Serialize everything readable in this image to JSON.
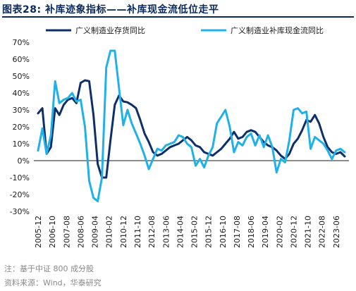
{
  "header": {
    "figure_label": "图表28:",
    "figure_title": "补库迹象指标——补库现金流低位走平"
  },
  "footer": {
    "note": "注：基于中证 800 成分股",
    "source": "资料来源：Wind，华泰研究"
  },
  "chart_data": {
    "type": "line",
    "title": "补库迹象指标——补库现金流低位走平",
    "xlabel": "",
    "ylabel": "",
    "ylim": [
      -30,
      70
    ],
    "y_ticks": [
      "70%",
      "60%",
      "50%",
      "40%",
      "30%",
      "20%",
      "10%",
      "0%",
      "-10%",
      "-20%",
      "-30%"
    ],
    "x_tick_labels": [
      "2005-12",
      "2006-10",
      "2007-08",
      "2008-06",
      "2009-04",
      "2010-02",
      "2010-12",
      "2011-10",
      "2012-08",
      "2013-06",
      "2014-04",
      "2015-02",
      "2015-12",
      "2016-10",
      "2017-08",
      "2018-06",
      "2019-04",
      "2020-02",
      "2020-12",
      "2021-10",
      "2022-08",
      "2023-06"
    ],
    "grid": false,
    "legend_position": "top",
    "series": [
      {
        "name": "广义制造业存货同比",
        "color": "#0f2f6b",
        "points": [
          [
            "2005-12",
            28
          ],
          [
            "2006-03",
            31
          ],
          [
            "2006-06",
            4
          ],
          [
            "2006-09",
            8
          ],
          [
            "2006-12",
            31
          ],
          [
            "2007-03",
            27
          ],
          [
            "2007-06",
            33
          ],
          [
            "2007-09",
            36
          ],
          [
            "2007-12",
            37
          ],
          [
            "2008-03",
            34
          ],
          [
            "2008-06",
            46
          ],
          [
            "2008-09",
            47.5
          ],
          [
            "2008-12",
            47
          ],
          [
            "2009-03",
            27
          ],
          [
            "2009-06",
            -2
          ],
          [
            "2009-09",
            -10
          ],
          [
            "2009-12",
            -10
          ],
          [
            "2010-03",
            12
          ],
          [
            "2010-06",
            33
          ],
          [
            "2010-09",
            38.5
          ],
          [
            "2010-12",
            35
          ],
          [
            "2011-03",
            34.5
          ],
          [
            "2011-06",
            33
          ],
          [
            "2011-09",
            31
          ],
          [
            "2011-12",
            24
          ],
          [
            "2012-03",
            16
          ],
          [
            "2012-06",
            11
          ],
          [
            "2012-09",
            5
          ],
          [
            "2012-12",
            3
          ],
          [
            "2013-03",
            4
          ],
          [
            "2013-06",
            6
          ],
          [
            "2013-09",
            8
          ],
          [
            "2013-12",
            9
          ],
          [
            "2014-03",
            10
          ],
          [
            "2014-06",
            12
          ],
          [
            "2014-09",
            14
          ],
          [
            "2014-12",
            12
          ],
          [
            "2015-03",
            9
          ],
          [
            "2015-06",
            8
          ],
          [
            "2015-09",
            5
          ],
          [
            "2015-12",
            4
          ],
          [
            "2016-03",
            3
          ],
          [
            "2016-06",
            5
          ],
          [
            "2016-09",
            7
          ],
          [
            "2016-12",
            10
          ],
          [
            "2017-03",
            13
          ],
          [
            "2017-06",
            17
          ],
          [
            "2017-09",
            13
          ],
          [
            "2017-12",
            14
          ],
          [
            "2018-03",
            17
          ],
          [
            "2018-06",
            18
          ],
          [
            "2018-09",
            17
          ],
          [
            "2018-12",
            14
          ],
          [
            "2019-03",
            11
          ],
          [
            "2019-06",
            9
          ],
          [
            "2019-09",
            8
          ],
          [
            "2019-12",
            6
          ],
          [
            "2020-03",
            3
          ],
          [
            "2020-06",
            1
          ],
          [
            "2020-09",
            4
          ],
          [
            "2020-12",
            10
          ],
          [
            "2021-03",
            13
          ],
          [
            "2021-06",
            18
          ],
          [
            "2021-09",
            24
          ],
          [
            "2021-12",
            23
          ],
          [
            "2022-03",
            27
          ],
          [
            "2022-06",
            22
          ],
          [
            "2022-09",
            14
          ],
          [
            "2022-12",
            8
          ],
          [
            "2023-03",
            5
          ],
          [
            "2023-06",
            4
          ],
          [
            "2023-09",
            5
          ],
          [
            "2023-12",
            2.5
          ]
        ]
      },
      {
        "name": "广义制造业补库现金流同比",
        "color": "#1fb1e8",
        "points": [
          [
            "2005-12",
            6
          ],
          [
            "2006-03",
            19
          ],
          [
            "2006-06",
            4
          ],
          [
            "2006-09",
            15
          ],
          [
            "2006-12",
            47
          ],
          [
            "2007-03",
            34
          ],
          [
            "2007-06",
            36
          ],
          [
            "2007-09",
            37
          ],
          [
            "2007-12",
            40
          ],
          [
            "2008-03",
            35
          ],
          [
            "2008-06",
            36
          ],
          [
            "2008-09",
            20
          ],
          [
            "2008-12",
            -12
          ],
          [
            "2009-03",
            -22
          ],
          [
            "2009-06",
            -24
          ],
          [
            "2009-09",
            -10
          ],
          [
            "2009-12",
            55
          ],
          [
            "2010-03",
            65
          ],
          [
            "2010-06",
            65
          ],
          [
            "2010-09",
            43
          ],
          [
            "2010-12",
            21
          ],
          [
            "2011-03",
            30
          ],
          [
            "2011-06",
            22
          ],
          [
            "2011-09",
            16
          ],
          [
            "2011-12",
            10
          ],
          [
            "2012-03",
            3
          ],
          [
            "2012-06",
            -5
          ],
          [
            "2012-09",
            1
          ],
          [
            "2012-12",
            7
          ],
          [
            "2013-03",
            6
          ],
          [
            "2013-06",
            9
          ],
          [
            "2013-09",
            10
          ],
          [
            "2013-12",
            11
          ],
          [
            "2014-03",
            15
          ],
          [
            "2014-06",
            14
          ],
          [
            "2014-09",
            10
          ],
          [
            "2014-12",
            8
          ],
          [
            "2015-03",
            -3
          ],
          [
            "2015-06",
            1
          ],
          [
            "2015-09",
            -4
          ],
          [
            "2015-12",
            3
          ],
          [
            "2016-03",
            8
          ],
          [
            "2016-06",
            22
          ],
          [
            "2016-09",
            26
          ],
          [
            "2016-12",
            30
          ],
          [
            "2017-03",
            20
          ],
          [
            "2017-06",
            5
          ],
          [
            "2017-09",
            11
          ],
          [
            "2017-12",
            9
          ],
          [
            "2018-03",
            14
          ],
          [
            "2018-06",
            16
          ],
          [
            "2018-09",
            9
          ],
          [
            "2018-12",
            15
          ],
          [
            "2019-03",
            8
          ],
          [
            "2019-06",
            15
          ],
          [
            "2019-09",
            8
          ],
          [
            "2019-12",
            -7
          ],
          [
            "2020-03",
            1
          ],
          [
            "2020-06",
            -1
          ],
          [
            "2020-09",
            12
          ],
          [
            "2020-12",
            30
          ],
          [
            "2021-03",
            31
          ],
          [
            "2021-06",
            28
          ],
          [
            "2021-09",
            29
          ],
          [
            "2021-12",
            7
          ],
          [
            "2022-03",
            14
          ],
          [
            "2022-06",
            12
          ],
          [
            "2022-09",
            10
          ],
          [
            "2022-12",
            6
          ],
          [
            "2023-03",
            1
          ],
          [
            "2023-06",
            6
          ],
          [
            "2023-09",
            7
          ],
          [
            "2023-12",
            5
          ]
        ]
      }
    ]
  }
}
